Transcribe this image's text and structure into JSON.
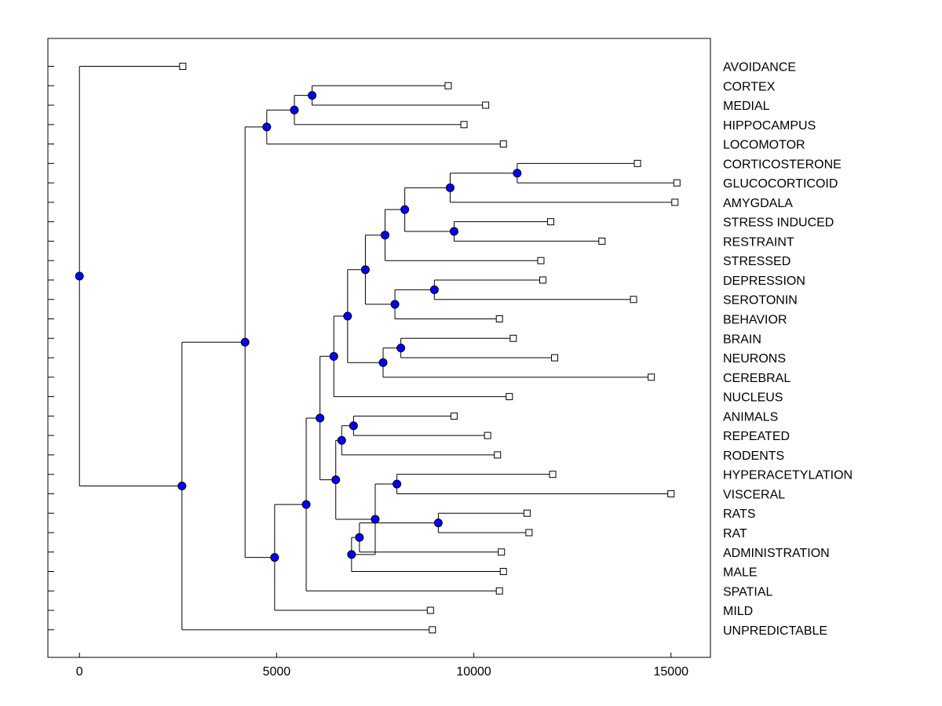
{
  "chart_data": {
    "type": "dendrogram",
    "title": "",
    "xlabel": "",
    "ylabel": "",
    "xlim": [
      -800,
      16000
    ],
    "xticks": [
      0,
      5000,
      10000,
      15000
    ],
    "xtick_labels": [
      "0",
      "5000",
      "10000",
      "15000"
    ],
    "grid": false,
    "marker_color": "#0000ff",
    "leaves": [
      {
        "label": "AVOIDANCE",
        "end": 2620
      },
      {
        "label": "CORTEX",
        "end": 9350
      },
      {
        "label": "MEDIAL",
        "end": 10300
      },
      {
        "label": "HIPPOCAMPUS",
        "end": 9750
      },
      {
        "label": "LOCOMOTOR",
        "end": 10750
      },
      {
        "label": "CORTICOSTERONE",
        "end": 14150
      },
      {
        "label": "GLUCOCORTICOID",
        "end": 15150
      },
      {
        "label": "AMYGDALA",
        "end": 15100
      },
      {
        "label": "STRESS INDUCED",
        "end": 11950
      },
      {
        "label": "RESTRAINT",
        "end": 13250
      },
      {
        "label": "STRESSED",
        "end": 11700
      },
      {
        "label": "DEPRESSION",
        "end": 11750
      },
      {
        "label": "SEROTONIN",
        "end": 14050
      },
      {
        "label": "BEHAVIOR",
        "end": 10650
      },
      {
        "label": "BRAIN",
        "end": 11000
      },
      {
        "label": "NEURONS",
        "end": 12050
      },
      {
        "label": "CEREBRAL",
        "end": 14500
      },
      {
        "label": "NUCLEUS",
        "end": 10900
      },
      {
        "label": "ANIMALS",
        "end": 9500
      },
      {
        "label": "REPEATED",
        "end": 10350
      },
      {
        "label": "RODENTS",
        "end": 10600
      },
      {
        "label": "HYPERACETYLATION",
        "end": 12000
      },
      {
        "label": "VISCERAL",
        "end": 15000
      },
      {
        "label": "RATS",
        "end": 11350
      },
      {
        "label": "RAT",
        "end": 11400
      },
      {
        "label": "ADMINISTRATION",
        "end": 10700
      },
      {
        "label": "MALE",
        "end": 10750
      },
      {
        "label": "SPATIAL",
        "end": 10650
      },
      {
        "label": "MILD",
        "end": 8900
      },
      {
        "label": "UNPREDICTABLE",
        "end": 8950
      }
    ],
    "merges": [
      {
        "id": "m1",
        "x": 5900,
        "children": [
          "CORTEX",
          "MEDIAL"
        ]
      },
      {
        "id": "m2",
        "x": 5450,
        "children": [
          "m1",
          "HIPPOCAMPUS"
        ]
      },
      {
        "id": "m3",
        "x": 4750,
        "children": [
          "m2",
          "LOCOMOTOR"
        ]
      },
      {
        "id": "m4",
        "x": 11100,
        "children": [
          "CORTICOSTERONE",
          "GLUCOCORTICOID"
        ]
      },
      {
        "id": "m5",
        "x": 9400,
        "children": [
          "m4",
          "AMYGDALA"
        ]
      },
      {
        "id": "m6",
        "x": 9500,
        "children": [
          "STRESS INDUCED",
          "RESTRAINT"
        ]
      },
      {
        "id": "m7",
        "x": 8250,
        "children": [
          "m5",
          "m6"
        ]
      },
      {
        "id": "m8",
        "x": 7750,
        "children": [
          "m7",
          "STRESSED"
        ]
      },
      {
        "id": "m9",
        "x": 9000,
        "children": [
          "DEPRESSION",
          "SEROTONIN"
        ]
      },
      {
        "id": "m10",
        "x": 8000,
        "children": [
          "m9",
          "BEHAVIOR"
        ]
      },
      {
        "id": "m11",
        "x": 7250,
        "children": [
          "m8",
          "m10"
        ]
      },
      {
        "id": "m12",
        "x": 8150,
        "children": [
          "BRAIN",
          "NEURONS"
        ]
      },
      {
        "id": "m13",
        "x": 7700,
        "children": [
          "m12",
          "CEREBRAL"
        ]
      },
      {
        "id": "m14",
        "x": 6800,
        "children": [
          "m11",
          "m13"
        ]
      },
      {
        "id": "m15",
        "x": 6450,
        "children": [
          "m14",
          "NUCLEUS"
        ]
      },
      {
        "id": "m16",
        "x": 6950,
        "children": [
          "ANIMALS",
          "REPEATED"
        ]
      },
      {
        "id": "m17",
        "x": 6650,
        "children": [
          "m16",
          "RODENTS"
        ]
      },
      {
        "id": "m18",
        "x": 8050,
        "children": [
          "HYPERACETYLATION",
          "VISCERAL"
        ]
      },
      {
        "id": "m19",
        "x": 9100,
        "children": [
          "RATS",
          "RAT"
        ]
      },
      {
        "id": "m20",
        "x": 7100,
        "children": [
          "m19",
          "ADMINISTRATION"
        ]
      },
      {
        "id": "m21",
        "x": 6900,
        "children": [
          "m20",
          "MALE"
        ]
      },
      {
        "id": "m22",
        "x": 7500,
        "children": [
          "m18",
          "m21"
        ]
      },
      {
        "id": "m23",
        "x": 6500,
        "children": [
          "m17",
          "m22"
        ]
      },
      {
        "id": "m24",
        "x": 6100,
        "children": [
          "m15",
          "m23"
        ]
      },
      {
        "id": "m25",
        "x": 5750,
        "children": [
          "m24",
          "SPATIAL"
        ]
      },
      {
        "id": "m26",
        "x": 4950,
        "children": [
          "m25",
          "MILD"
        ]
      },
      {
        "id": "m27",
        "x": 4200,
        "children": [
          "m3",
          "m26"
        ]
      },
      {
        "id": "m28",
        "x": 2600,
        "children": [
          "m27",
          "UNPREDICTABLE"
        ]
      },
      {
        "id": "m29",
        "x": 0,
        "children": [
          "AVOIDANCE",
          "m28"
        ]
      }
    ]
  }
}
